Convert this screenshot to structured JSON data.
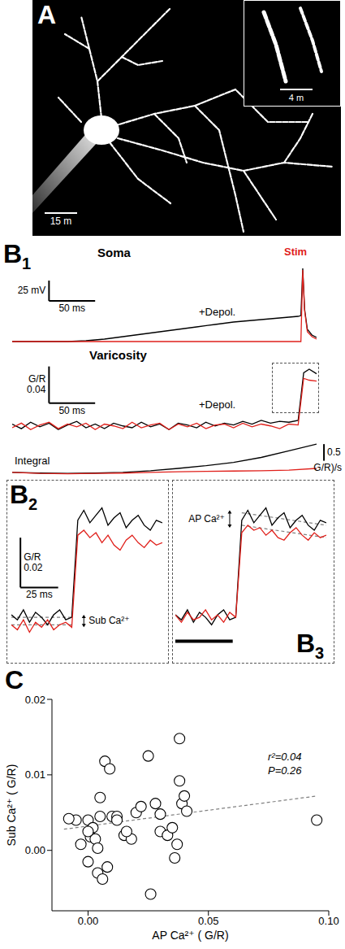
{
  "panels": {
    "A": {
      "letter": "A",
      "scale_bar_label": "15 m",
      "inset_scale_bar_label": "4 m"
    }
  },
  "chart_data": [
    {
      "letter": "B1",
      "title": "Soma",
      "type": "line",
      "tick_labels": false,
      "xlim": [
        0,
        330
      ],
      "ylim": [
        -10,
        100
      ],
      "x": [
        0,
        20,
        40,
        60,
        80,
        100,
        120,
        140,
        160,
        180,
        200,
        220,
        240,
        260,
        280,
        300,
        310,
        313,
        315,
        317,
        320,
        325,
        330
      ],
      "series": [
        {
          "color": "#000000",
          "values": [
            0,
            0,
            0,
            0,
            1,
            3,
            6,
            9,
            12,
            15,
            18,
            21,
            24,
            26,
            28,
            30,
            31,
            32,
            90,
            40,
            15,
            8,
            5
          ]
        },
        {
          "color": "#e0201b",
          "values": [
            0,
            0,
            0,
            0,
            0,
            0,
            0,
            0,
            0,
            0,
            0,
            0,
            0,
            0,
            0,
            0,
            0,
            0,
            88,
            38,
            12,
            6,
            3
          ]
        }
      ],
      "scale_bar": {
        "x": 50,
        "x_label": "50 ms",
        "y": 25,
        "y_label": "25 mV"
      },
      "annotations": [
        {
          "text": "+Depol.",
          "color": "#000000"
        },
        {
          "text": "Stim",
          "color": "#e0201b"
        }
      ]
    },
    {
      "title": "Varicosity",
      "type": "line",
      "tick_labels": false,
      "xlim": [
        0,
        330
      ],
      "ylim": [
        -0.01,
        0.07
      ],
      "x": [
        0,
        10,
        20,
        30,
        40,
        50,
        60,
        70,
        80,
        90,
        100,
        110,
        120,
        130,
        140,
        150,
        160,
        170,
        180,
        190,
        200,
        210,
        220,
        230,
        240,
        250,
        260,
        270,
        280,
        290,
        300,
        310,
        316,
        322,
        330
      ],
      "series": [
        {
          "color": "#000000",
          "values": [
            0.002,
            -0.003,
            0.004,
            -0.001,
            0.003,
            -0.004,
            0.001,
            0.005,
            -0.002,
            0.002,
            -0.003,
            0.003,
            0.0,
            -0.002,
            0.004,
            -0.001,
            0.002,
            -0.004,
            0.003,
            0.001,
            -0.002,
            0.004,
            0.0,
            0.003,
            0.001,
            0.005,
            0.002,
            0.006,
            0.003,
            0.005,
            0.004,
            0.006,
            0.058,
            0.062,
            0.057
          ]
        },
        {
          "color": "#e0201b",
          "values": [
            -0.002,
            0.003,
            -0.004,
            0.001,
            0.004,
            -0.003,
            0.002,
            -0.001,
            0.003,
            -0.004,
            0.002,
            0.0,
            -0.003,
            0.004,
            -0.002,
            0.001,
            0.003,
            -0.004,
            0.002,
            -0.001,
            0.003,
            -0.003,
            0.001,
            0.002,
            -0.002,
            0.003,
            -0.001,
            0.002,
            0.0,
            -0.003,
            0.002,
            0.001,
            0.052,
            0.05,
            0.049
          ]
        }
      ],
      "scale_bar": {
        "x": 50,
        "x_label": "50 ms",
        "y": 0.04,
        "y_label": [
          "G/R",
          "0.04"
        ]
      },
      "annotations": [
        {
          "text": "+Depol.",
          "color": "#000000"
        }
      ]
    },
    {
      "title": "Integral",
      "type": "line",
      "tick_labels": false,
      "xlim": [
        0,
        330
      ],
      "ylim": [
        -0.1,
        1.0
      ],
      "x": [
        0,
        30,
        60,
        90,
        120,
        150,
        180,
        210,
        240,
        270,
        300,
        330
      ],
      "series": [
        {
          "color": "#000000",
          "values": [
            0,
            -0.02,
            -0.03,
            -0.02,
            0.0,
            0.05,
            0.12,
            0.2,
            0.3,
            0.45,
            0.65,
            0.85
          ]
        },
        {
          "color": "#e0201b",
          "values": [
            0,
            -0.03,
            -0.04,
            -0.03,
            -0.02,
            0,
            0.02,
            0.03,
            0.04,
            0.05,
            0.07,
            0.12
          ]
        }
      ],
      "scale_bar": {
        "y": 0.5,
        "y_label": [
          "0.5",
          "G/R)/s"
        ]
      }
    },
    {
      "letter": "B2",
      "type": "line",
      "tick_labels": false,
      "xlim": [
        0,
        100
      ],
      "ylim": [
        -0.012,
        0.055
      ],
      "x": [
        0,
        4,
        8,
        12,
        16,
        20,
        24,
        28,
        32,
        36,
        40,
        44,
        48,
        52,
        56,
        60,
        64,
        68,
        72,
        76,
        80,
        84,
        88,
        92,
        96,
        100
      ],
      "series": [
        {
          "color": "#000000",
          "values": [
            0.004,
            0.002,
            0.006,
            0.001,
            0.005,
            0.003,
            0.0,
            0.004,
            0.006,
            0.002,
            0.003,
            0.042,
            0.046,
            0.041,
            0.044,
            0.047,
            0.04,
            0.043,
            0.045,
            0.039,
            0.042,
            0.044,
            0.04,
            0.038,
            0.042,
            0.041
          ]
        },
        {
          "color": "#e0201b",
          "values": [
            0.0,
            -0.002,
            0.002,
            -0.003,
            0.001,
            -0.001,
            0.002,
            -0.002,
            0.0,
            0.001,
            -0.001,
            0.036,
            0.038,
            0.035,
            0.037,
            0.033,
            0.036,
            0.032,
            0.03,
            0.034,
            0.036,
            0.033,
            0.031,
            0.034,
            0.032,
            0.033
          ]
        }
      ],
      "scale_bar": {
        "x": 25,
        "x_label": "25 ms",
        "y": 0.02,
        "y_label": [
          "G/R",
          "0.02"
        ]
      },
      "fits": [
        {
          "color": "#808080",
          "x": [
            0,
            40
          ],
          "values": [
            0.003,
            0.003
          ],
          "line_style": "dashed"
        },
        {
          "color": "#808080",
          "x": [
            0,
            40
          ],
          "values": [
            0.0,
            0.0
          ],
          "line_style": "dashed"
        }
      ],
      "annotations": [
        {
          "text": "Sub Ca²⁺",
          "color": "#000000"
        }
      ]
    },
    {
      "letter": "B3",
      "type": "line",
      "tick_labels": false,
      "xlim": [
        0,
        100
      ],
      "ylim": [
        -0.012,
        0.055
      ],
      "x": [
        0,
        4,
        8,
        12,
        16,
        20,
        24,
        28,
        32,
        36,
        40,
        44,
        48,
        52,
        56,
        60,
        64,
        68,
        72,
        76,
        80,
        84,
        88,
        92,
        96,
        100
      ],
      "series": [
        {
          "color": "#000000",
          "values": [
            0.004,
            0.002,
            0.006,
            0.001,
            0.005,
            0.003,
            0.0,
            0.004,
            0.006,
            0.002,
            0.003,
            0.042,
            0.046,
            0.041,
            0.044,
            0.047,
            0.04,
            0.043,
            0.045,
            0.039,
            0.042,
            0.044,
            0.04,
            0.038,
            0.042,
            0.041
          ]
        },
        {
          "color": "#e0201b",
          "values": [
            0.004,
            0.001,
            0.005,
            0.002,
            0.003,
            0.006,
            0.002,
            0.004,
            0.001,
            0.005,
            0.003,
            0.037,
            0.04,
            0.038,
            0.039,
            0.036,
            0.038,
            0.035,
            0.034,
            0.037,
            0.039,
            0.036,
            0.034,
            0.037,
            0.035,
            0.036
          ]
        }
      ],
      "fits": [
        {
          "color": "#808080",
          "x": [
            44,
            100
          ],
          "values": [
            0.045,
            0.04
          ],
          "line_style": "dashed"
        },
        {
          "color": "#808080",
          "x": [
            44,
            100
          ],
          "values": [
            0.04,
            0.035
          ],
          "line_style": "dashed"
        }
      ],
      "baseline_period": [
        0,
        38
      ],
      "annotations": [
        {
          "text": "AP Ca²⁺",
          "color": "#000000"
        }
      ]
    },
    {
      "letter": "C",
      "type": "scatter",
      "xlabel": "AP Ca²⁺ ( G/R)",
      "ylabel": "Sub Ca²⁺ ( G/R)",
      "xlim": [
        -0.015,
        0.1
      ],
      "ylim": [
        -0.008,
        0.02
      ],
      "xticks": [
        {
          "value": 0,
          "label": "0.00"
        },
        {
          "value": 0.05,
          "label": "0.05"
        },
        {
          "value": 0.1,
          "label": "0.10"
        }
      ],
      "yticks": [
        {
          "value": 0,
          "label": "0.00"
        },
        {
          "value": 0.01,
          "label": "0.01"
        },
        {
          "value": 0.02,
          "label": "0.02"
        }
      ],
      "x": [
        0.0,
        -0.005,
        0.002,
        0.005,
        0.01,
        0.012,
        0.007,
        0.009,
        0.005,
        0.001,
        0.003,
        0.004,
        -0.003,
        0.0,
        0.004,
        0.006,
        0.008,
        0.015,
        0.018,
        0.02,
        0.022,
        0.025,
        0.026,
        0.028,
        0.03,
        0.033,
        0.035,
        0.036,
        0.037,
        0.038,
        0.038,
        0.039,
        0.04,
        0.041,
        0.095,
        0.0,
        -0.008,
        0.012,
        0.016,
        0.03
      ],
      "values": [
        0.004,
        0.004,
        0.003,
        0.0045,
        0.0045,
        0.0045,
        0.0118,
        0.0108,
        0.007,
        0.0018,
        0.0015,
        0.0003,
        0.0008,
        -0.0015,
        -0.003,
        -0.0038,
        -0.0022,
        0.002,
        0.0015,
        0.005,
        0.0058,
        0.0125,
        -0.0058,
        0.0062,
        0.0025,
        0.002,
        0.003,
        -0.001,
        0.0008,
        0.0148,
        0.0092,
        0.0062,
        0.0072,
        0.0052,
        0.004,
        0.0025,
        0.0042,
        0.004,
        0.0025,
        0.0048
      ],
      "color": "#000000",
      "marker": "open circle",
      "fit": {
        "x": [
          -0.01,
          0.095
        ],
        "values": [
          0.0028,
          0.0072
        ],
        "color": "#808080",
        "line_style": "dashed"
      },
      "stats": [
        "r²=0.04",
        "P=0.26"
      ]
    }
  ]
}
